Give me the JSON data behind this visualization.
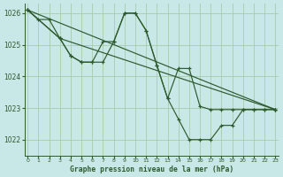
{
  "xlabel": "Graphe pression niveau de la mer (hPa)",
  "xlim": [
    -0.3,
    23.3
  ],
  "ylim": [
    1021.5,
    1026.3
  ],
  "yticks": [
    1022,
    1023,
    1024,
    1025,
    1026
  ],
  "xticks": [
    0,
    1,
    2,
    3,
    4,
    5,
    6,
    7,
    8,
    9,
    10,
    11,
    12,
    13,
    14,
    15,
    16,
    17,
    18,
    19,
    20,
    21,
    22,
    23
  ],
  "bg_color": "#c8e8e8",
  "line_color": "#2d5a2d",
  "grid_color": "#a8cca8",
  "series": [
    {
      "x": [
        0,
        1,
        2,
        3,
        4,
        5,
        6,
        7,
        8,
        9,
        10,
        11,
        12,
        13,
        14,
        15,
        16,
        17,
        18,
        19,
        20,
        21,
        22,
        23
      ],
      "y": [
        1026.1,
        1025.8,
        1025.8,
        1025.2,
        1024.65,
        1024.45,
        1024.45,
        1024.45,
        1025.1,
        1026.0,
        1026.0,
        1025.45,
        1024.35,
        1023.3,
        1022.65,
        1022.0,
        1022.0,
        1022.0,
        1022.45,
        1022.45,
        1022.95,
        1022.95,
        1022.95,
        1022.95
      ]
    },
    {
      "x": [
        0,
        3,
        4,
        5,
        6,
        7,
        8,
        9,
        10,
        11,
        12,
        13,
        14,
        15,
        16,
        17,
        18,
        19,
        20,
        21,
        22,
        23
      ],
      "y": [
        1026.1,
        1025.2,
        1024.65,
        1024.45,
        1024.45,
        1025.1,
        1025.1,
        1026.0,
        1026.0,
        1025.45,
        1024.35,
        1023.3,
        1024.25,
        1024.25,
        1023.05,
        1022.95,
        1022.95,
        1022.95,
        1022.95,
        1022.95,
        1022.95,
        1022.95
      ]
    },
    {
      "x": [
        0,
        23
      ],
      "y": [
        1026.1,
        1022.95
      ]
    },
    {
      "x": [
        0,
        3,
        23
      ],
      "y": [
        1026.1,
        1025.2,
        1022.95
      ]
    }
  ]
}
